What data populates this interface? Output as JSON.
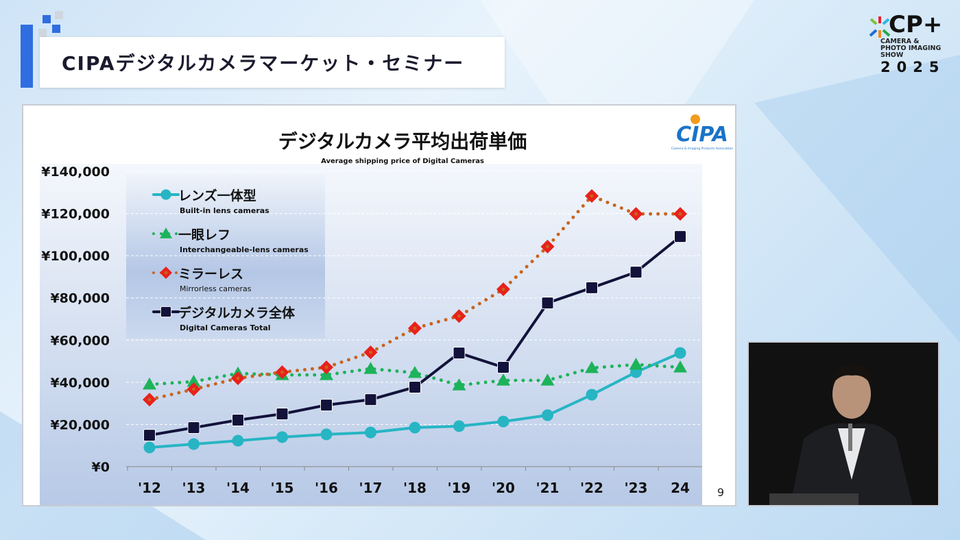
{
  "header": {
    "title": "CIPAデジタルカメラマーケット・セミナー"
  },
  "event_logo": {
    "brand": "CP+",
    "line1": "CAMERA &",
    "line2": "PHOTO IMAGING",
    "line3": "SHOW",
    "year": "2025"
  },
  "slide": {
    "page_number": "9",
    "org_logo": "CIPA",
    "org_logo_caption": "Camera & Imaging Products Association"
  },
  "chart_data": {
    "type": "line",
    "title": "デジタルカメラ平均出荷単価",
    "subtitle": "Average shipping price of Digital Cameras",
    "categories": [
      "'12",
      "'13",
      "'14",
      "'15",
      "'16",
      "'17",
      "'18",
      "'19",
      "'20",
      "'21",
      "'22",
      "'23",
      "24"
    ],
    "ylim": [
      0,
      140000
    ],
    "yticks": [
      "¥0",
      "¥20,000",
      "¥40,000",
      "¥60,000",
      "¥80,000",
      "¥100,000",
      "¥120,000",
      "¥140,000"
    ],
    "grid": true,
    "legend_position": "top-left",
    "series": [
      {
        "name": "レンズ一体型",
        "name_en": "Built-in lens cameras",
        "color": "#27b5c4",
        "marker": "circle",
        "style": "solid",
        "values": [
          9100,
          10700,
          12300,
          14000,
          15300,
          16200,
          18500,
          19200,
          21400,
          24400,
          34100,
          44800,
          53900
        ]
      },
      {
        "name": "一眼レフ",
        "name_en": "Interchangeable-lens cameras",
        "color": "#1db35a",
        "marker": "triangle",
        "style": "dotted",
        "values": [
          39000,
          40300,
          44200,
          43500,
          43500,
          46400,
          44500,
          38600,
          40900,
          40900,
          46800,
          48400,
          47100
        ]
      },
      {
        "name": "ミラーレス",
        "name_en": "Mirrorless cameras",
        "color": "#e8211b",
        "line_color": "#c8641e",
        "marker": "diamond",
        "style": "dotted",
        "values": [
          31800,
          36700,
          41900,
          44800,
          47100,
          54200,
          65600,
          71400,
          84100,
          104300,
          128300,
          119800,
          119800
        ]
      },
      {
        "name": "デジタルカメラ全体",
        "name_en": "Digital Cameras Total",
        "color": "#12123a",
        "marker": "square",
        "style": "solid",
        "values": [
          14900,
          18500,
          22100,
          25000,
          29200,
          31800,
          37700,
          53900,
          47100,
          77600,
          84800,
          92200,
          109100
        ]
      }
    ]
  }
}
